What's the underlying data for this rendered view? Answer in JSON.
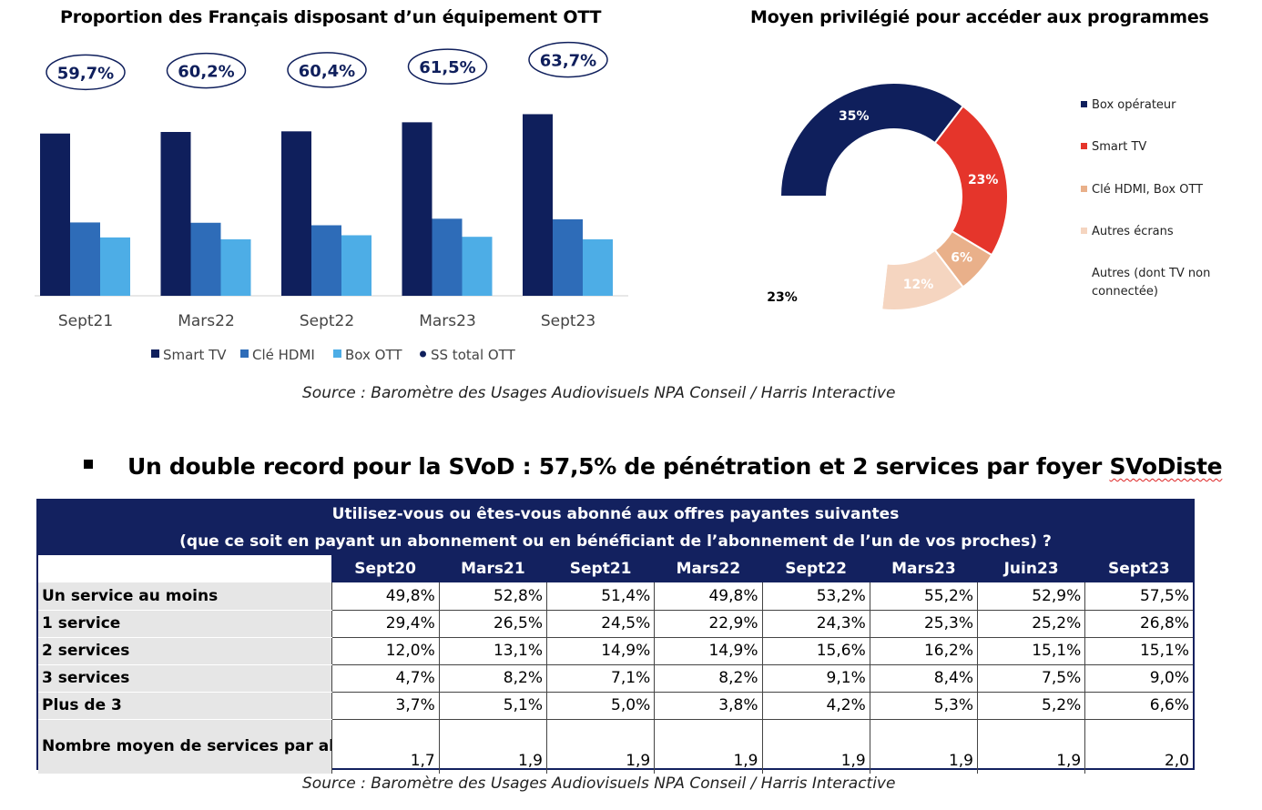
{
  "bar_chart": {
    "title": "Proportion des Français disposant d’un équipement OTT",
    "source": "Source : Baromètre des Usages Audiovisuels NPA Conseil / Harris Interactive"
  },
  "donut_chart": {
    "title": "Moyen privilégié pour accéder aux programmes"
  },
  "headline": {
    "text_before": "Un double record pour la SVoD : 57,5% de pénétration et 2 services par foyer ",
    "text_underlined": "SVoDiste"
  },
  "table": {
    "question_line1": "Utilisez-vous ou êtes-vous abonné aux offres payantes suivantes",
    "question_line2": "(que ce soit en payant un abonnement ou en bénéficiant de l’abonnement de l’un de vos proches) ?",
    "columns": [
      "Sept20",
      "Mars21",
      "Sept21",
      "Mars22",
      "Sept22",
      "Mars23",
      "Juin23",
      "Sept23"
    ],
    "rows": [
      {
        "label": "Un service au moins",
        "values": [
          "49,8%",
          "52,8%",
          "51,4%",
          "49,8%",
          "53,2%",
          "55,2%",
          "52,9%",
          "57,5%"
        ]
      },
      {
        "label": "1 service",
        "values": [
          "29,4%",
          "26,5%",
          "24,5%",
          "22,9%",
          "24,3%",
          "25,3%",
          "25,2%",
          "26,8%"
        ]
      },
      {
        "label": "2 services",
        "values": [
          "12,0%",
          "13,1%",
          "14,9%",
          "14,9%",
          "15,6%",
          "16,2%",
          "15,1%",
          "15,1%"
        ]
      },
      {
        "label": "3 services",
        "values": [
          "4,7%",
          "8,2%",
          "7,1%",
          "8,2%",
          "9,1%",
          "8,4%",
          "7,5%",
          "9,0%"
        ]
      },
      {
        "label": "Plus de 3",
        "values": [
          "3,7%",
          "5,1%",
          "5,0%",
          "3,8%",
          "4,2%",
          "5,3%",
          "5,2%",
          "6,6%"
        ]
      },
      {
        "label": "Nombre moyen de services par abonné",
        "values": [
          "1,7",
          "1,9",
          "1,9",
          "1,9",
          "1,9",
          "1,9",
          "1,9",
          "2,0"
        ]
      }
    ],
    "source": "Source : Baromètre des Usages Audiovisuels NPA Conseil / Harris Interactive"
  },
  "chart_data": [
    {
      "type": "bar",
      "title": "Proportion des Français disposant d’un équipement OTT",
      "categories": [
        "Sept21",
        "Mars22",
        "Sept22",
        "Mars23",
        "Sept23"
      ],
      "ylim": [
        0,
        70
      ],
      "grid": false,
      "legend_position": "bottom",
      "series": [
        {
          "name": "Smart TV",
          "color": "#0f1f5c",
          "values": [
            52,
            52.5,
            52.7,
            55.6,
            58.2
          ]
        },
        {
          "name": "Clé HDMI",
          "color": "#2e6cb8",
          "values": [
            23.5,
            23.4,
            22.6,
            24.7,
            24.5
          ]
        },
        {
          "name": "Box OTT",
          "color": "#4dade6",
          "values": [
            18.7,
            18.1,
            19.4,
            18.9,
            18.1
          ]
        }
      ],
      "totals": {
        "name": "SS total OTT",
        "color": "#0f1f5c",
        "values": [
          59.7,
          60.2,
          60.4,
          61.5,
          63.7
        ],
        "labels": [
          "59,7%",
          "60,2%",
          "60,4%",
          "61,5%",
          "63,7%"
        ]
      }
    },
    {
      "type": "pie",
      "variant": "donut",
      "title": "Moyen privilégié pour accéder aux programmes",
      "legend_position": "right",
      "slices": [
        {
          "name": "Box opérateur",
          "value": 35,
          "label": "35%",
          "color": "#0f1f5c",
          "label_color": "#ffffff"
        },
        {
          "name": "Smart TV",
          "value": 23,
          "label": "23%",
          "color": "#e5352b",
          "label_color": "#ffffff"
        },
        {
          "name": "Clé HDMI, Box OTT",
          "value": 6,
          "label": "6%",
          "color": "#e9b08a",
          "label_color": "#ffffff"
        },
        {
          "name": "Autres écrans",
          "value": 12,
          "label": "12%",
          "color": "#f5d5c0",
          "label_color": "#ffffff"
        },
        {
          "name": "Autres (dont TV non connectée)",
          "value": 23,
          "label": "23%",
          "color": "#ffffff",
          "label_color": "#000000"
        }
      ]
    }
  ]
}
